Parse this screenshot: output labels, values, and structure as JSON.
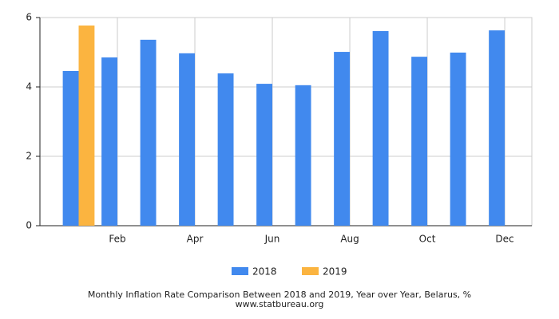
{
  "chart_data": {
    "type": "bar",
    "title": "Monthly Inflation Rate Comparison Between 2018 and 2019, Year over Year, Belarus, %",
    "subtitle": "www.statbureau.org",
    "categories": [
      null,
      "Feb",
      null,
      "Apr",
      null,
      "Jun",
      null,
      "Aug",
      null,
      "Oct",
      null,
      "Dec"
    ],
    "series": [
      {
        "name": "2018",
        "color": "#4189ee",
        "values": [
          4.46,
          4.85,
          5.36,
          4.97,
          4.39,
          4.09,
          4.05,
          5.01,
          5.61,
          4.87,
          4.99,
          5.63
        ]
      },
      {
        "name": "2019",
        "color": "#fbb440",
        "values": [
          5.77,
          null,
          null,
          null,
          null,
          null,
          null,
          null,
          null,
          null,
          null,
          null
        ]
      }
    ],
    "ylim": [
      0,
      6
    ],
    "yticks": [
      0,
      2,
      4,
      6
    ],
    "grid": true
  }
}
